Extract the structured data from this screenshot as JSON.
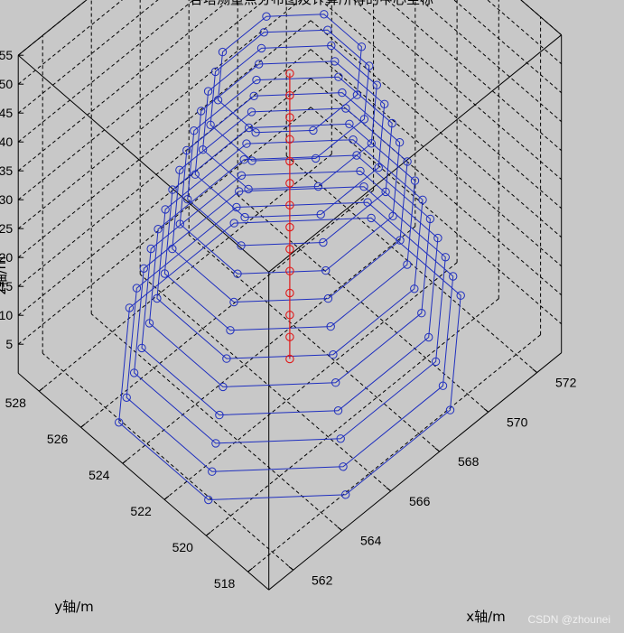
{
  "chart_data": {
    "type": "scatter",
    "title": "各塔测量点分布图及计算所得的中心坐标",
    "xlabel": "x轴/m",
    "ylabel": "y轴/m",
    "zlabel": "z轴/m",
    "x_ticks": [
      "562",
      "564",
      "566",
      "568",
      "570",
      "572"
    ],
    "y_ticks": [
      "518",
      "520",
      "522",
      "524",
      "526",
      "528"
    ],
    "z_ticks": [
      "5",
      "10",
      "15",
      "20",
      "25",
      "30",
      "35",
      "40",
      "45",
      "50",
      "55"
    ],
    "xlim": [
      561,
      573
    ],
    "ylim": [
      517,
      529
    ],
    "zlim": [
      0,
      55
    ],
    "grid": true,
    "rings": [
      {
        "z": 0.7,
        "cx": 567,
        "cy": 523,
        "r": 5.6
      },
      {
        "z": 4.5,
        "cx": 567,
        "cy": 523,
        "r": 5.35
      },
      {
        "z": 8.3,
        "cx": 567,
        "cy": 523,
        "r": 5.1
      },
      {
        "z": 12.1,
        "cx": 567,
        "cy": 523,
        "r": 4.85
      },
      {
        "z": 15.9,
        "cx": 567,
        "cy": 523,
        "r": 4.6
      },
      {
        "z": 19.7,
        "cx": 567,
        "cy": 523,
        "r": 4.35
      },
      {
        "z": 23.5,
        "cx": 567,
        "cy": 523,
        "r": 4.1
      },
      {
        "z": 27.3,
        "cx": 567,
        "cy": 523,
        "r": 3.85
      },
      {
        "z": 31.1,
        "cx": 567,
        "cy": 523,
        "r": 3.6
      },
      {
        "z": 34.9,
        "cx": 567,
        "cy": 523,
        "r": 3.35
      },
      {
        "z": 38.7,
        "cx": 567,
        "cy": 523,
        "r": 3.1
      },
      {
        "z": 42.5,
        "cx": 567,
        "cy": 523,
        "r": 2.85
      },
      {
        "z": 46.3,
        "cx": 567,
        "cy": 523,
        "r": 2.6
      },
      {
        "z": 50.1,
        "cx": 567,
        "cy": 523,
        "r": 2.35
      }
    ],
    "points_per_ring": 8,
    "center_series": {
      "x": [
        567,
        567,
        567,
        567,
        567,
        567,
        567,
        567,
        567,
        567,
        567,
        567,
        567,
        567
      ],
      "y": [
        523,
        523,
        523,
        523,
        523,
        523,
        523,
        523,
        523,
        523,
        523,
        523,
        523,
        523
      ],
      "z": [
        0.7,
        4.5,
        8.3,
        12.1,
        15.9,
        19.7,
        23.5,
        27.3,
        31.1,
        34.9,
        38.7,
        42.5,
        46.3,
        50.1
      ]
    },
    "colors": {
      "rings": "#1f2fbf",
      "center": "#e01818",
      "grid": "#000000",
      "background": "#c8c8c8"
    }
  },
  "watermark": "CSDN @zhounei"
}
